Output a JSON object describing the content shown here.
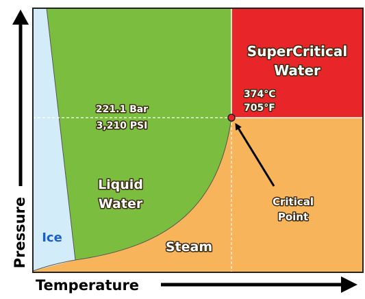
{
  "diagram": {
    "regions": {
      "supercritical": [
        "SuperCritical",
        "Water"
      ],
      "liquid": [
        "Liquid",
        "Water"
      ],
      "ice": "Ice",
      "steam": "Steam"
    },
    "critical_temperature": [
      "374°C",
      "705°F"
    ],
    "critical_pressure": [
      "221.1 Bar",
      "3,210 PSI"
    ],
    "critical_point": [
      "Critical",
      "Point"
    ],
    "axes": {
      "y": "Pressure",
      "x": "Temperature"
    }
  }
}
